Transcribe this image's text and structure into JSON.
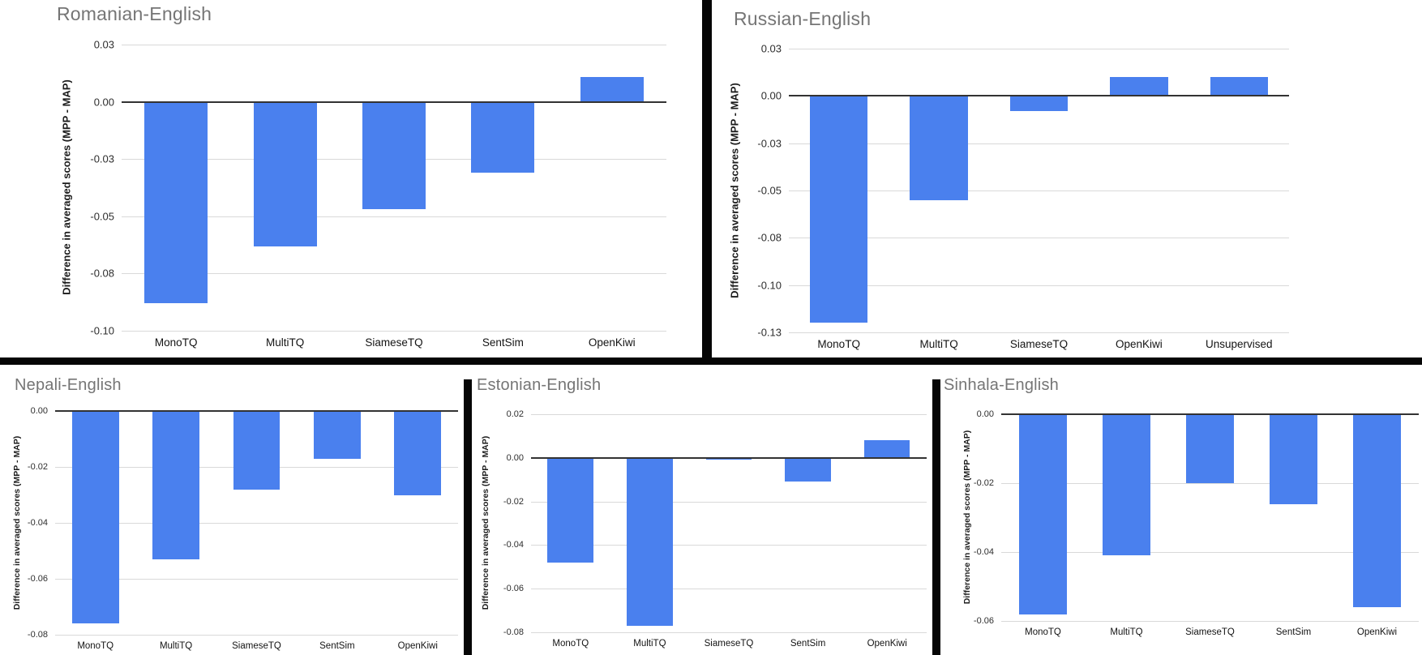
{
  "page": {
    "background": "#ffffff"
  },
  "styles": {
    "bar_color": "#4A80EE",
    "title_color": "#757575",
    "grid_color": "#d9d9d9",
    "zero_line_color": "#333333",
    "tick_label_color": "#2e2e2e",
    "category_label_color": "#141414",
    "divider_color": "#060606"
  },
  "chart_data": [
    {
      "type": "bar",
      "title": "Romanian-English",
      "ylabel": "Difference in averaged scores (MPP - MAP)",
      "xlabel": "",
      "categories": [
        "MonoTQ",
        "MultiTQ",
        "SiameseTQ",
        "SentSim",
        "OpenKiwi"
      ],
      "values": [
        -0.088,
        -0.063,
        -0.047,
        -0.031,
        0.011
      ],
      "ymax": 0.025,
      "ymin": -0.1,
      "yticks": [
        {
          "label": "0.03",
          "value": 0.025
        },
        {
          "label": "0.00",
          "value": 0
        },
        {
          "label": "-0.03",
          "value": -0.025
        },
        {
          "label": "-0.05",
          "value": -0.05
        },
        {
          "label": "-0.08",
          "value": -0.075
        },
        {
          "label": "-0.10",
          "value": -0.1
        }
      ],
      "grid": true,
      "legend": "none"
    },
    {
      "type": "bar",
      "title": "Russian-English",
      "ylabel": "Difference in averaged scores (MPP - MAP)",
      "xlabel": "",
      "categories": [
        "MonoTQ",
        "MultiTQ",
        "SiameseTQ",
        "OpenKiwi",
        "Unsupervised"
      ],
      "values": [
        -0.12,
        -0.055,
        -0.008,
        0.01,
        0.01
      ],
      "ymax": 0.025,
      "ymin": -0.125,
      "yticks": [
        {
          "label": "0.03",
          "value": 0.025
        },
        {
          "label": "0.00",
          "value": 0
        },
        {
          "label": "-0.03",
          "value": -0.025
        },
        {
          "label": "-0.05",
          "value": -0.05
        },
        {
          "label": "-0.08",
          "value": -0.075
        },
        {
          "label": "-0.10",
          "value": -0.1
        },
        {
          "label": "-0.13",
          "value": -0.125
        }
      ],
      "grid": true,
      "legend": "none"
    },
    {
      "type": "bar",
      "title": "Nepali-English",
      "ylabel": "Difference in averaged scores (MPP - MAP)",
      "xlabel": "",
      "categories": [
        "MonoTQ",
        "MultiTQ",
        "SiameseTQ",
        "SentSim",
        "OpenKiwi"
      ],
      "values": [
        -0.076,
        -0.053,
        -0.028,
        -0.017,
        -0.03
      ],
      "ymax": 0,
      "ymin": -0.08,
      "yticks": [
        {
          "label": "0.00",
          "value": 0
        },
        {
          "label": "-0.02",
          "value": -0.02
        },
        {
          "label": "-0.04",
          "value": -0.04
        },
        {
          "label": "-0.06",
          "value": -0.06
        },
        {
          "label": "-0.08",
          "value": -0.08
        }
      ],
      "grid": true,
      "legend": "none"
    },
    {
      "type": "bar",
      "title": "Estonian-English",
      "ylabel": "Difference in averaged scores (MPP - MAP)",
      "xlabel": "",
      "categories": [
        "MonoTQ",
        "MultiTQ",
        "SiameseTQ",
        "SentSim",
        "OpenKiwi"
      ],
      "values": [
        -0.048,
        -0.077,
        -0.001,
        -0.011,
        0.008
      ],
      "ymax": 0.02,
      "ymin": -0.08,
      "yticks": [
        {
          "label": "0.02",
          "value": 0.02
        },
        {
          "label": "0.00",
          "value": 0
        },
        {
          "label": "-0.02",
          "value": -0.02
        },
        {
          "label": "-0.04",
          "value": -0.04
        },
        {
          "label": "-0.06",
          "value": -0.06
        },
        {
          "label": "-0.08",
          "value": -0.08
        }
      ],
      "grid": true,
      "legend": "none"
    },
    {
      "type": "bar",
      "title": "Sinhala-English",
      "ylabel": "Difference in averaged scores (MPP - MAP)",
      "xlabel": "",
      "categories": [
        "MonoTQ",
        "MultiTQ",
        "SiameseTQ",
        "SentSim",
        "OpenKiwi"
      ],
      "values": [
        -0.058,
        -0.041,
        -0.02,
        -0.026,
        -0.056
      ],
      "ymax": 0,
      "ymin": -0.06,
      "yticks": [
        {
          "label": "0.00",
          "value": 0
        },
        {
          "label": "-0.02",
          "value": -0.02
        },
        {
          "label": "-0.04",
          "value": -0.04
        },
        {
          "label": "-0.06",
          "value": -0.06
        }
      ],
      "grid": true,
      "legend": "none"
    }
  ]
}
